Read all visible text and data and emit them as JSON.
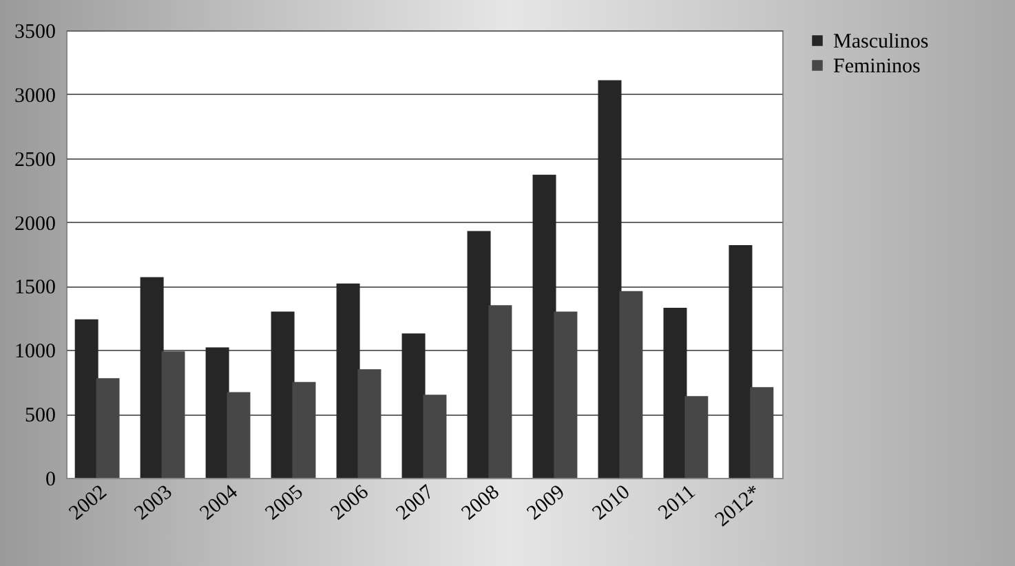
{
  "chart_data": {
    "type": "bar",
    "categories": [
      "2002",
      "2003",
      "2004",
      "2005",
      "2006",
      "2007",
      "2008",
      "2009",
      "2010",
      "2011",
      "2012*"
    ],
    "series": [
      {
        "name": "Masculinos",
        "color": "#262626",
        "values": [
          1240,
          1570,
          1020,
          1300,
          1520,
          1130,
          1930,
          2370,
          3110,
          1330,
          1820
        ]
      },
      {
        "name": "Femininos",
        "color": "#474747",
        "values": [
          780,
          990,
          670,
          750,
          850,
          650,
          1350,
          1300,
          1460,
          640,
          710
        ]
      }
    ],
    "ylim": [
      0,
      3500
    ],
    "yticks": [
      0,
      500,
      1000,
      1500,
      2000,
      2500,
      3000,
      3500
    ],
    "grid": "y",
    "legend": "right"
  }
}
